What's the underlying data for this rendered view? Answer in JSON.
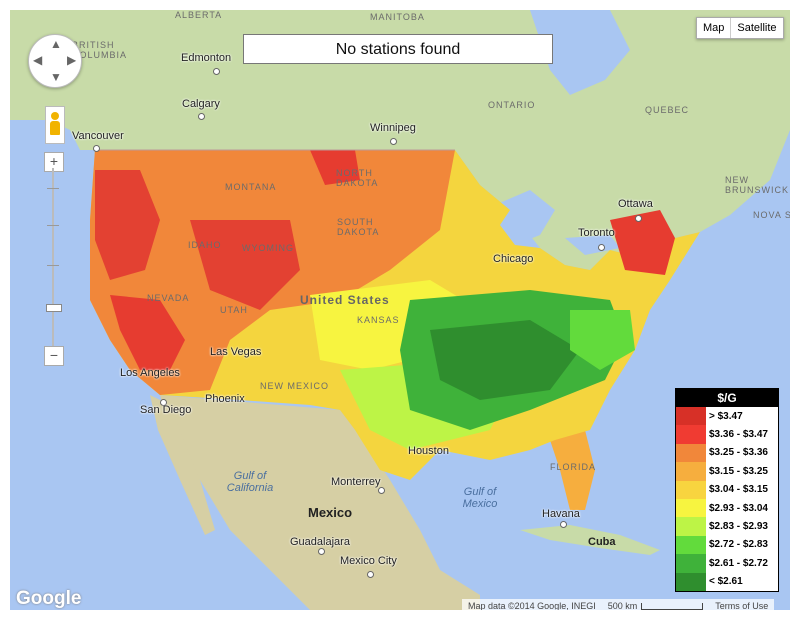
{
  "status_box": {
    "text": "No stations found"
  },
  "map_type": {
    "map_label": "Map",
    "satellite_label": "Satellite"
  },
  "places": {
    "cities": [
      "Edmonton",
      "Calgary",
      "Vancouver",
      "Winnipeg",
      "Ottawa",
      "Toronto",
      "Chicago",
      "Los Angeles",
      "San Diego",
      "Las Vegas",
      "Phoenix",
      "Monterrey",
      "Havana",
      "Guadalajara",
      "Mexico City",
      "Houston"
    ],
    "regions": [
      "ALBERTA",
      "MANITOBA",
      "BRITISH COLUMBIA",
      "ONTARIO",
      "QUEBEC",
      "NEW BRUNSWICK",
      "NOVA SCOTIA",
      "MONTANA",
      "NORTH DAKOTA",
      "SOUTH DAKOTA",
      "IDAHO",
      "WYOMING",
      "NEVADA",
      "UTAH",
      "NEW MEXICO",
      "KANSAS",
      "FLORIDA"
    ],
    "countries": [
      "United States",
      "Mexico",
      "Cuba"
    ],
    "waters": [
      "Gulf of California",
      "Gulf of Mexico"
    ]
  },
  "legend": {
    "title": "$/G",
    "entries": [
      {
        "label": "> $3.47",
        "color": "#d73027"
      },
      {
        "label": "$3.36 - $3.47",
        "color": "#f03b32"
      },
      {
        "label": "$3.25 - $3.36",
        "color": "#f1873a"
      },
      {
        "label": "$3.15 - $3.25",
        "color": "#f6ae3e"
      },
      {
        "label": "$3.04 - $3.15",
        "color": "#f8d43f"
      },
      {
        "label": "$2.93 - $3.04",
        "color": "#f7f440"
      },
      {
        "label": "$2.83 - $2.93",
        "color": "#bdf446"
      },
      {
        "label": "$2.72 - $2.83",
        "color": "#62db3c"
      },
      {
        "label": "$2.61 - $2.72",
        "color": "#3fb23a"
      },
      {
        "label": "< $2.61",
        "color": "#2f8e2e"
      }
    ]
  },
  "branding": {
    "logo": "Google"
  },
  "attribution": {
    "map_data": "Map data ©2014 Google, INEGI",
    "scale": "500 km",
    "terms": "Terms of Use"
  }
}
